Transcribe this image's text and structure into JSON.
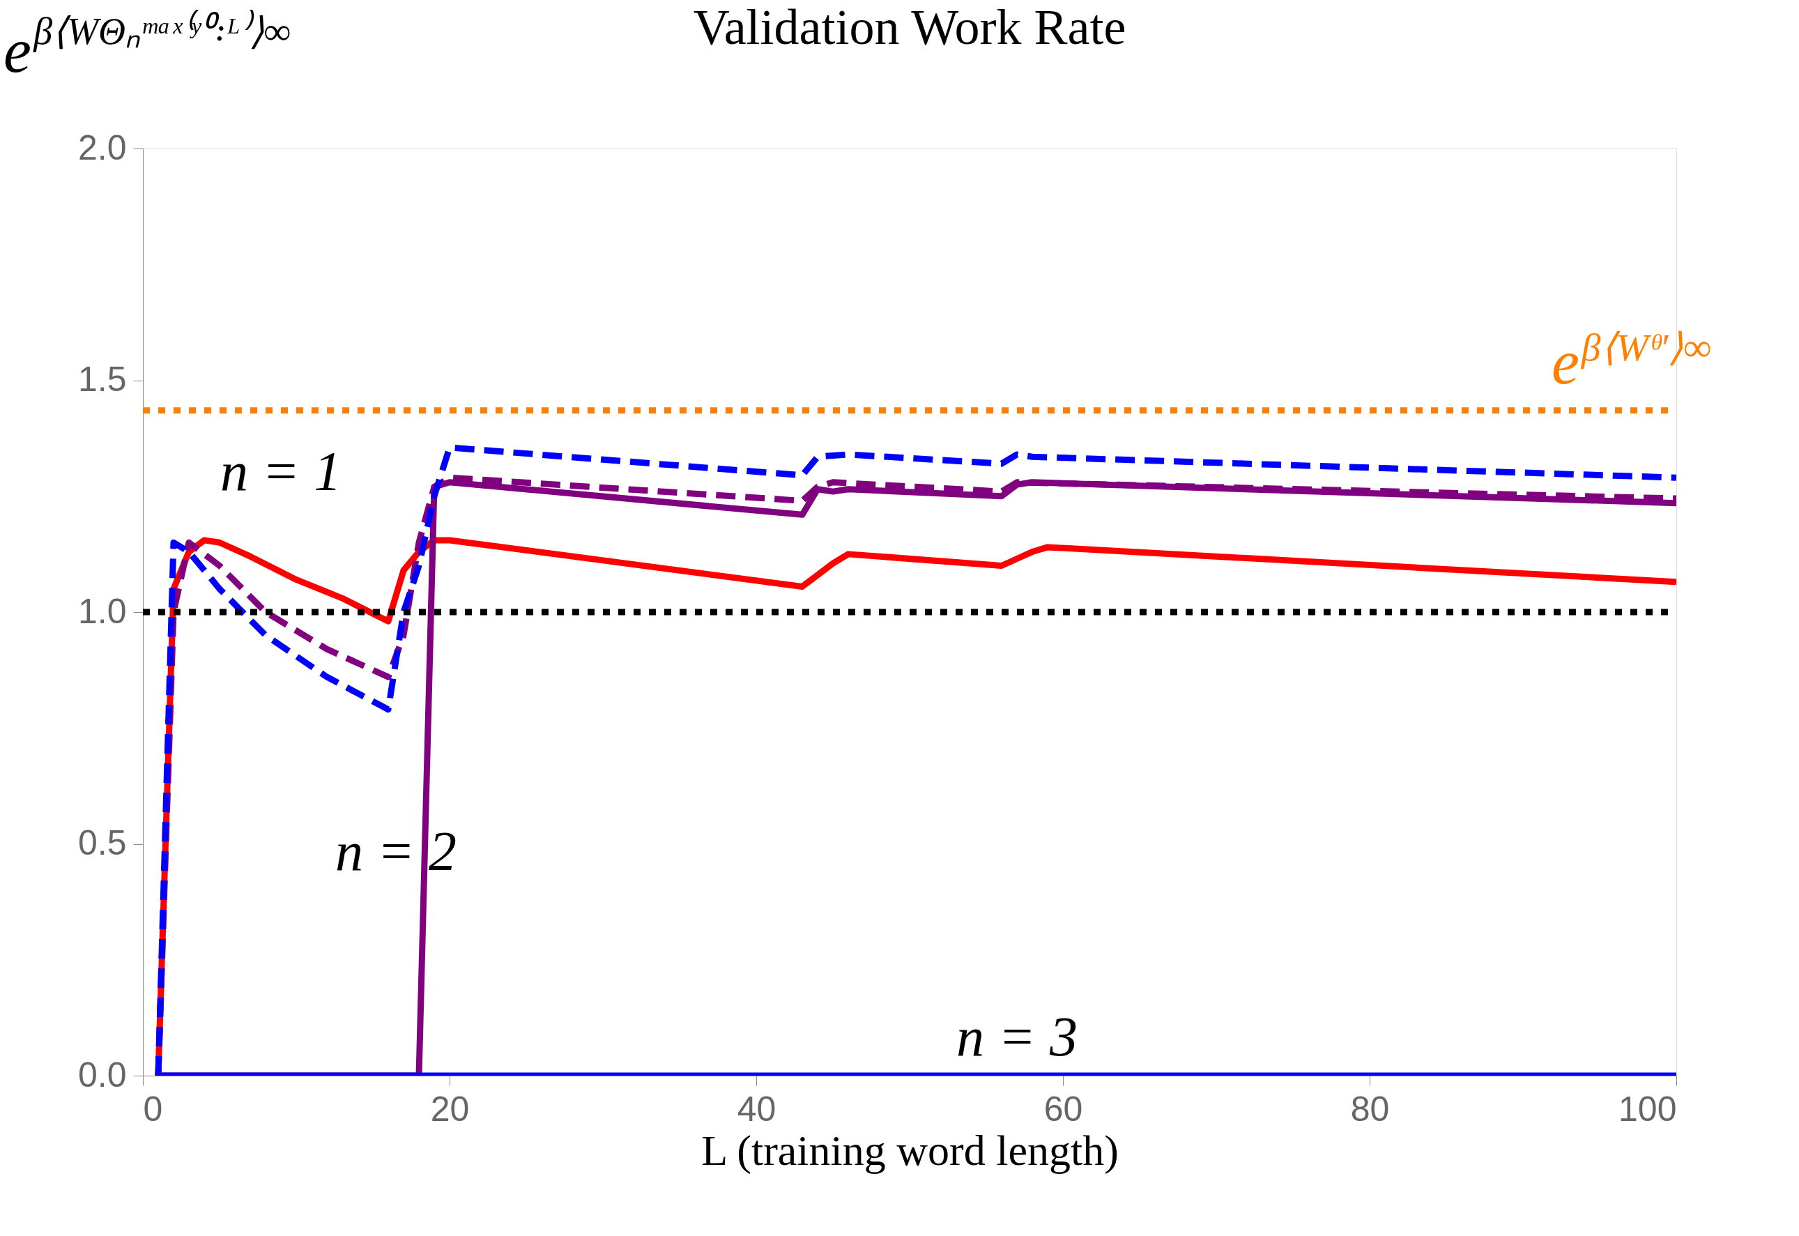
{
  "chart_data": {
    "type": "line",
    "title": "Validation Work Rate",
    "xlabel": "L (training word length)",
    "ylabel": "e$^{β⟨WΘₙᵐᵃˣ⁽ʸ⁰꞉ᴸ⁾⟩∞}$",
    "xlim": [
      0,
      100
    ],
    "ylim": [
      0,
      2
    ],
    "xticks": [
      0,
      20,
      40,
      60,
      80,
      100
    ],
    "yticks": [
      {
        "value": 0,
        "label": "0.0"
      },
      0.5,
      {
        "value": 1,
        "label": "1.0"
      },
      1.5,
      {
        "value": 2,
        "label": "2.0"
      }
    ],
    "grid": false,
    "marker": "none",
    "series": [
      {
        "color": "#ff0000",
        "line_style": "solid",
        "x": [
          1,
          2,
          3,
          4,
          5,
          7,
          10,
          13,
          16,
          17,
          18,
          19,
          20,
          43,
          44,
          45,
          46,
          56,
          57,
          58,
          59,
          100
        ],
        "values": [
          0,
          1.05,
          1.13,
          1.155,
          1.15,
          1.12,
          1.07,
          1.03,
          0.98,
          1.09,
          1.13,
          1.155,
          1.155,
          1.055,
          1.08,
          1.105,
          1.125,
          1.1,
          1.115,
          1.13,
          1.14,
          1.065
        ]
      },
      {
        "color": "#800080",
        "line_style": "solid",
        "x": [
          1,
          18,
          19,
          20,
          43,
          44,
          45,
          46,
          56,
          57,
          58,
          100
        ],
        "values": [
          0,
          0,
          1.27,
          1.28,
          1.21,
          1.265,
          1.26,
          1.265,
          1.25,
          1.275,
          1.28,
          1.235
        ]
      },
      {
        "color": "#0000ff",
        "line_style": "solid",
        "x": [
          1,
          100
        ],
        "values": [
          0,
          0
        ]
      },
      {
        "color": "#800080",
        "line_style": "dashed",
        "x": [
          1,
          2,
          3,
          5,
          8,
          12,
          16,
          17,
          18,
          19,
          20,
          43,
          44,
          45,
          56,
          57,
          100
        ],
        "values": [
          0,
          1.0,
          1.15,
          1.1,
          1.0,
          0.92,
          0.86,
          0.95,
          1.15,
          1.27,
          1.29,
          1.24,
          1.27,
          1.28,
          1.26,
          1.28,
          1.245
        ]
      },
      {
        "color": "#0000ff",
        "line_style": "dashed",
        "x": [
          1,
          2,
          3,
          5,
          8,
          12,
          16,
          17,
          18,
          19,
          20,
          43,
          44,
          46,
          56,
          57,
          58,
          100
        ],
        "values": [
          0,
          1.15,
          1.13,
          1.05,
          0.95,
          0.86,
          0.79,
          1.0,
          1.1,
          1.25,
          1.355,
          1.295,
          1.335,
          1.34,
          1.32,
          1.34,
          1.335,
          1.29
        ]
      }
    ],
    "ref_lines": [
      {
        "axis": "y",
        "value": 1.0,
        "color": "#000000",
        "line_style": "dotted"
      },
      {
        "axis": "y",
        "value": 1.435,
        "color": "#ff8000",
        "line_style": "dotted",
        "label": "e$^{β⟨Wᶿ′⟩∞}$"
      }
    ],
    "annotations": [
      "n = 1",
      "n = 2",
      "n = 3"
    ]
  }
}
